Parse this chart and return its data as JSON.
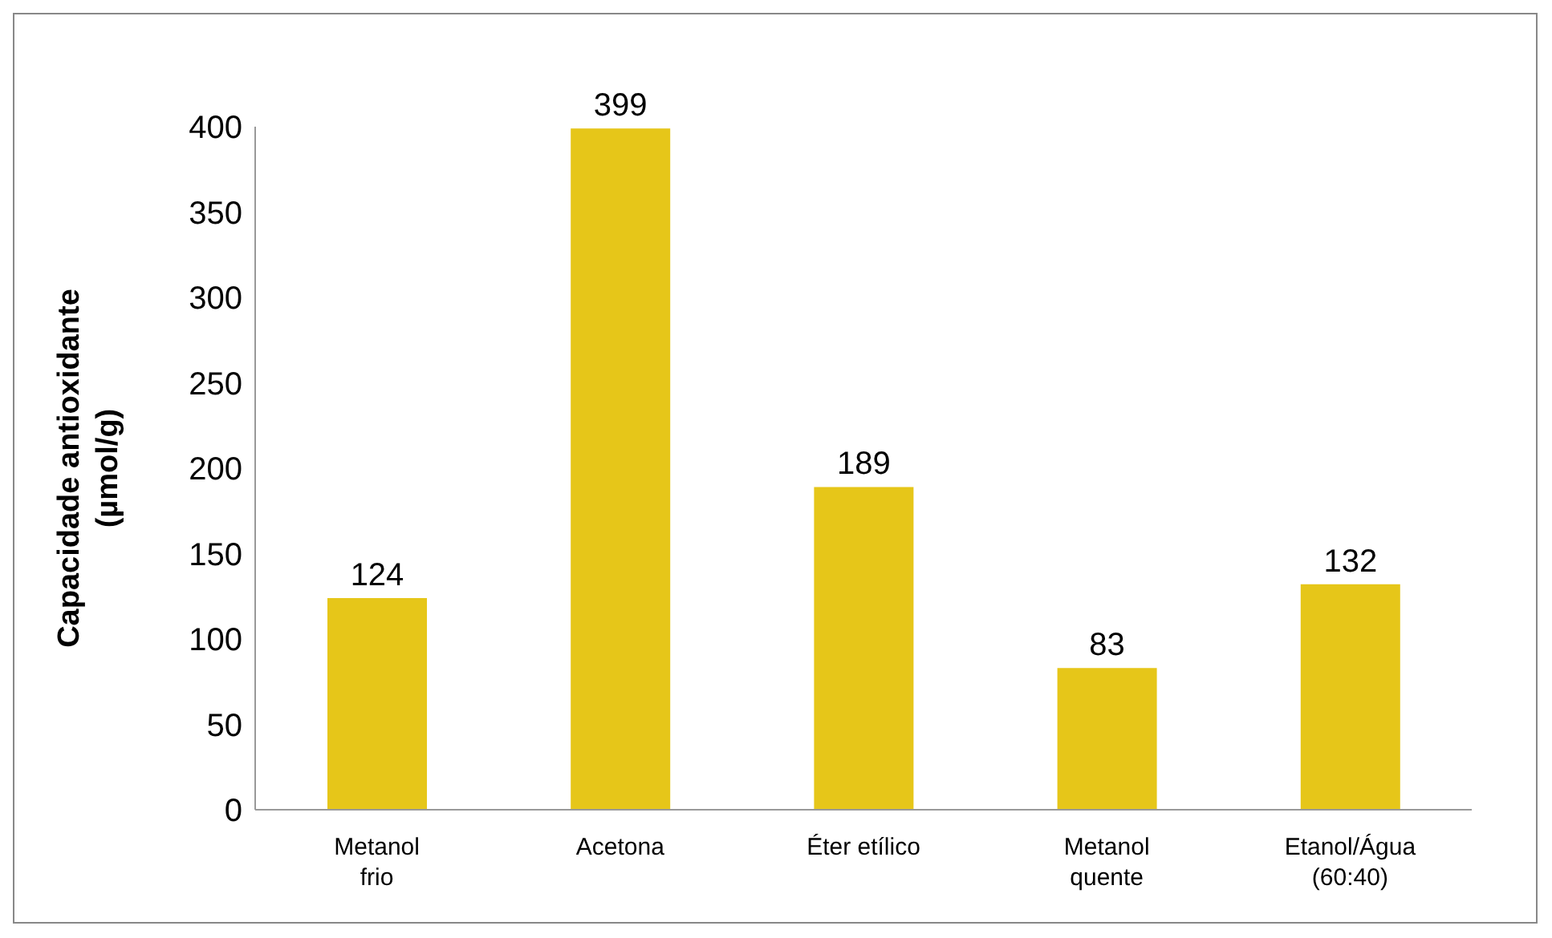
{
  "chart_data": {
    "type": "bar",
    "ylabel": "Capacidade antioxidante\n(µmol/g)",
    "categories": [
      "Metanol\nfrio",
      "Acetona",
      "Éter etílico",
      "Metanol\nquente",
      "Etanol/Água\n(60:40)"
    ],
    "values": [
      124,
      399,
      189,
      83,
      132
    ],
    "color": "#e6c619",
    "ylim": [
      0,
      400
    ],
    "yticks": [
      0,
      50,
      100,
      150,
      200,
      250,
      300,
      350,
      400
    ],
    "data_labels": true,
    "grid": false,
    "legend": false
  }
}
